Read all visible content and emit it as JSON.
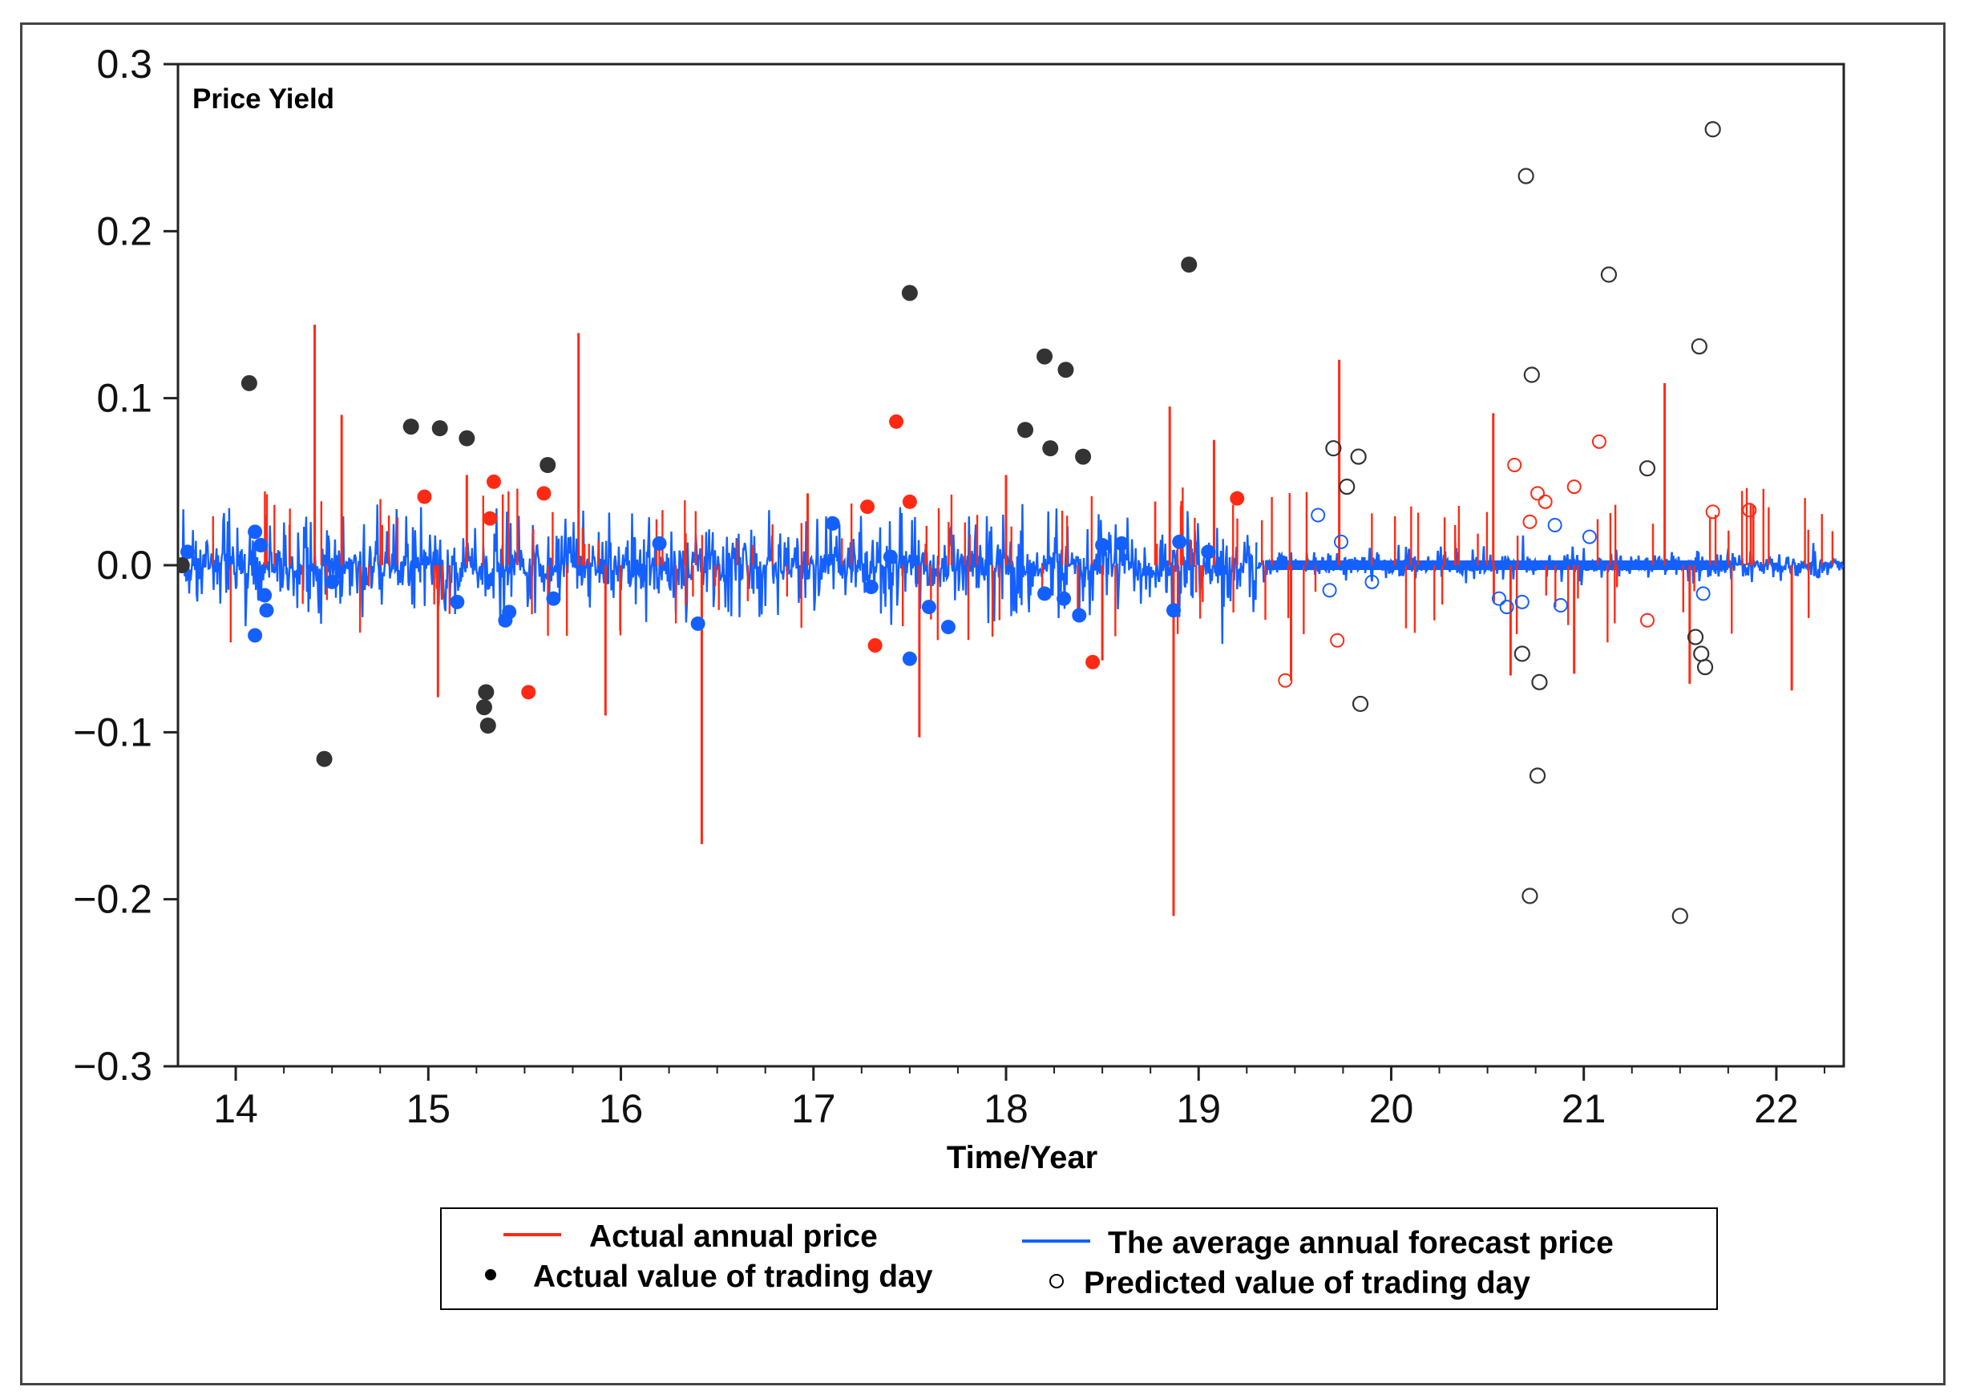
{
  "chart_data": {
    "type": "line",
    "title": "Price Yield",
    "xlabel": "Time/Year",
    "ylabel": "",
    "xlim": [
      13.7,
      22.35
    ],
    "ylim": [
      -0.3,
      0.3
    ],
    "grid": false,
    "x_ticks": [
      "14",
      "15",
      "16",
      "17",
      "18",
      "19",
      "20",
      "21",
      "22"
    ],
    "y_ticks": [
      "0.3",
      "0.2",
      "0.1",
      "0.0",
      "−0.1",
      "−0.2",
      "−0.3"
    ],
    "colors": {
      "actual_annual": "#ff2a14",
      "forecast_annual": "#1460ff",
      "actual_day": "#333333",
      "predicted_day": "#333333",
      "axis": "#222222"
    },
    "legend": {
      "placement": "bottom-center",
      "entries": [
        "Actual annual price",
        "The average annual forecast price",
        "Actual value of trading day",
        "Predicted value of trading day"
      ]
    },
    "series": [
      {
        "name": "Actual annual price",
        "kind": "spikes",
        "x": [
          14.41,
          14.55,
          15.05,
          15.2,
          15.78,
          15.92,
          16.42,
          16.97,
          17.55,
          18.0,
          18.5,
          18.85,
          18.87,
          19.08,
          19.48,
          19.73,
          20.53,
          20.62,
          20.95,
          21.42,
          21.55,
          21.88,
          22.08
        ],
        "y": [
          0.144,
          0.09,
          -0.079,
          0.054,
          0.139,
          -0.09,
          -0.167,
          0.043,
          -0.103,
          0.054,
          -0.057,
          0.095,
          -0.21,
          0.075,
          -0.069,
          0.123,
          0.091,
          -0.066,
          -0.065,
          0.109,
          -0.071,
          0.036,
          -0.075
        ]
      },
      {
        "name": "The average annual forecast price",
        "kind": "noise",
        "segments": [
          {
            "x_from": 13.72,
            "x_to": 19.3,
            "amplitude": 0.04
          },
          {
            "x_from": 19.3,
            "x_to": 22.35,
            "amplitude": 0.012
          }
        ]
      },
      {
        "name": "Actual value of trading day",
        "kind": "scatter-filled",
        "x": [
          14.07,
          14.46,
          14.91,
          15.06,
          15.2,
          15.3,
          15.29,
          15.31,
          15.62,
          17.5,
          18.1,
          18.2,
          18.23,
          18.31,
          18.4,
          18.95
        ],
        "y": [
          0.109,
          -0.116,
          0.083,
          0.082,
          0.076,
          -0.076,
          -0.085,
          -0.096,
          0.06,
          0.163,
          0.081,
          0.125,
          0.07,
          0.117,
          0.065,
          0.18
        ]
      },
      {
        "name": "Predicted value of trading day",
        "kind": "scatter-hollow",
        "x": [
          19.7,
          19.77,
          19.83,
          19.84,
          20.7,
          20.73,
          20.72,
          20.76,
          20.77,
          20.68,
          21.13,
          21.33,
          21.5,
          21.6,
          21.67,
          21.58,
          21.61,
          21.63
        ],
        "y": [
          0.07,
          0.047,
          0.065,
          -0.083,
          0.233,
          0.114,
          -0.198,
          -0.126,
          -0.07,
          -0.053,
          0.174,
          0.058,
          -0.21,
          0.131,
          0.261,
          -0.043,
          -0.053,
          -0.061
        ]
      }
    ]
  }
}
